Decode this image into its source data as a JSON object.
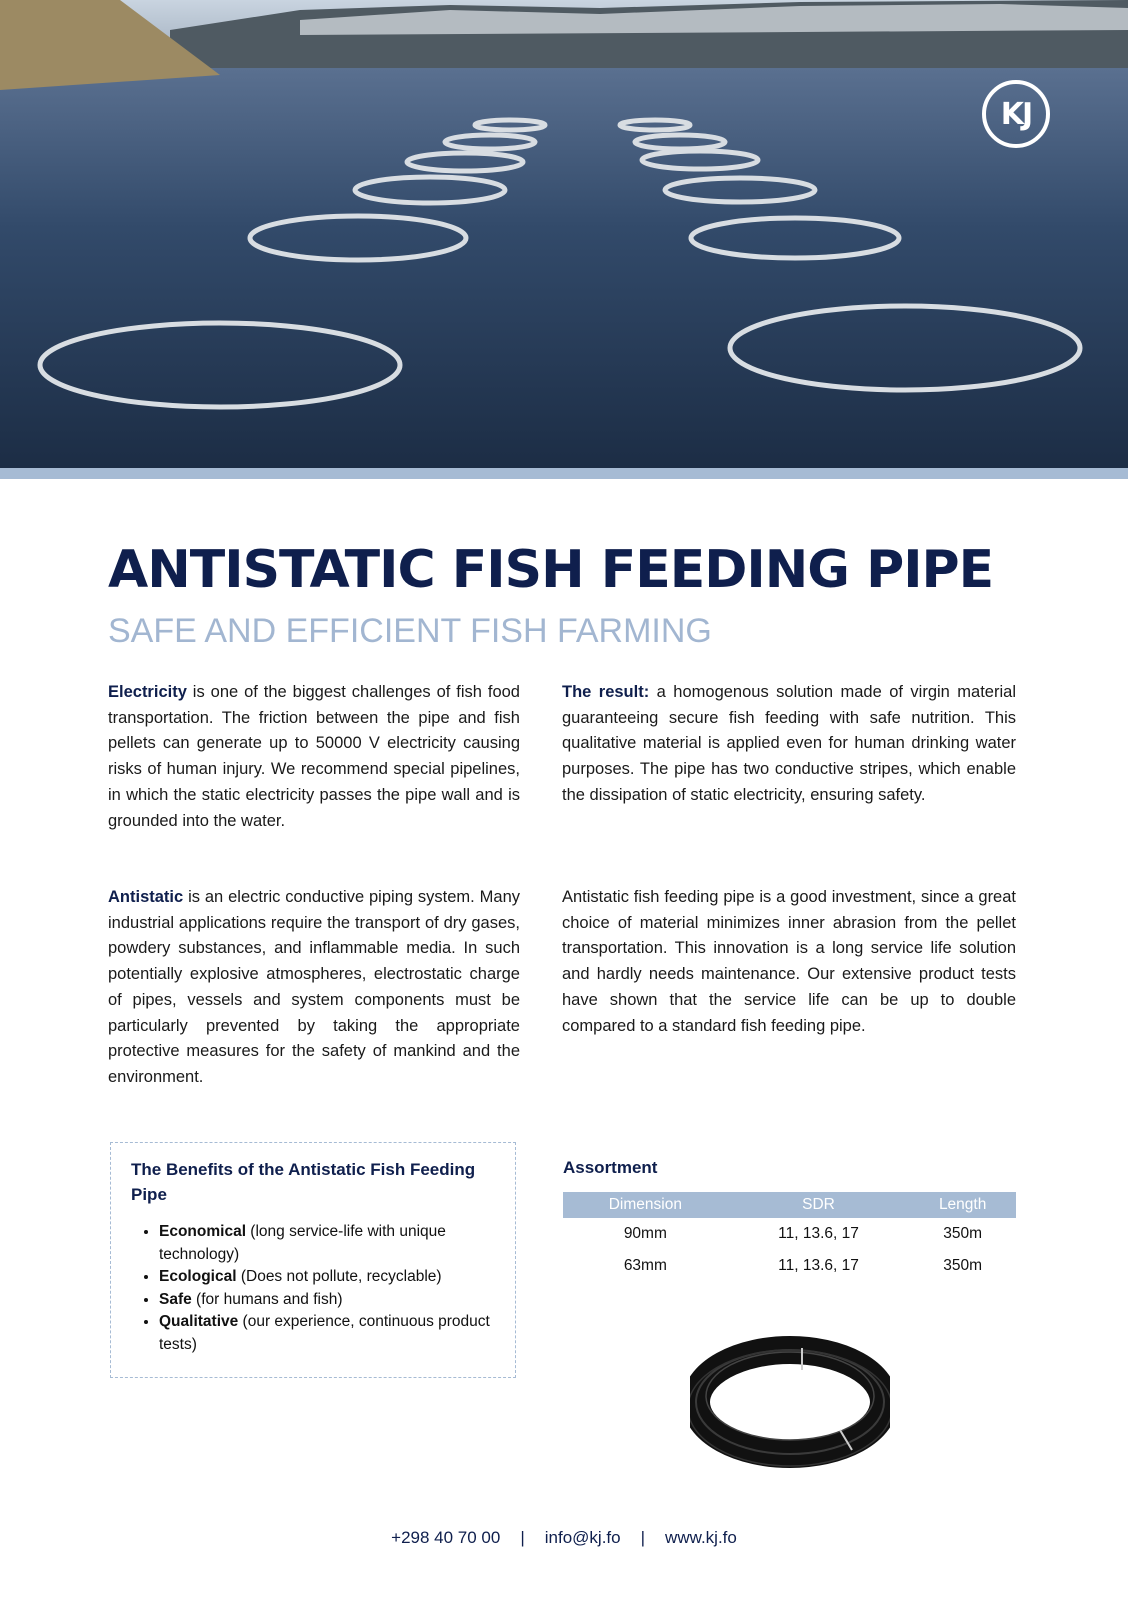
{
  "hero": {
    "logo_text": "KJ"
  },
  "title": "ANTISTATIC FISH FEEDING PIPE",
  "subtitle": "SAFE AND EFFICIENT FISH FARMING",
  "paragraphs": {
    "electricity": {
      "lead": "Electricity",
      "text": " is one of the biggest challenges of fish food transportation. The friction between the pipe and fish pellets can generate up to 50000 V electricity causing risks of human injury. We recommend special pipelines, in which the static electricity passes the pipe wall and is grounded into the water."
    },
    "antistatic": {
      "lead": "Antistatic",
      "text": " is an electric conductive piping system. Many industrial applications require the transport of dry gases, powdery substances, and inflammable media. In such potentially explosive atmospheres, electrostatic charge of pipes, vessels and system components must be particularly prevented by taking the appropriate protective measures for the safety of mankind and the environment."
    },
    "result": {
      "lead": "The result:",
      "text": " a homogenous solution made of virgin material guaranteeing secure fish feeding with safe nutrition. This qualitative material is applied even for human drinking water purposes. The pipe has two conductive stripes, which enable the dissipation of static electricity, ensuring safety."
    },
    "investment": {
      "text": "Antistatic fish feeding pipe is a good investment, since a great choice of material minimizes inner abrasion from the pellet transportation. This innovation is a long service life solution and hardly needs maintenance. Our extensive product tests have shown that the service life can be up to double compared to a standard fish feeding pipe."
    }
  },
  "benefits": {
    "title": "The Benefits of the Antistatic Fish Feeding Pipe",
    "items": [
      {
        "bold": "Economical",
        "text": " (long service-life with unique technology)"
      },
      {
        "bold": "Ecological",
        "text": " (Does not pollute, recyclable)"
      },
      {
        "bold": "Safe",
        "text": " (for humans and fish)"
      },
      {
        "bold": "Qualitative",
        "text": " (our experience, continuous product tests)"
      }
    ]
  },
  "assortment": {
    "title": "Assortment",
    "headers": [
      "Dimension",
      "SDR",
      "Length"
    ],
    "rows": [
      [
        "90mm",
        "11, 13.6, 17",
        "350m"
      ],
      [
        "63mm",
        "11, 13.6, 17",
        "350m"
      ]
    ]
  },
  "footer": {
    "phone": "+298 40 70 00",
    "separator": "|",
    "email": "info@kj.fo",
    "website": "www.kj.fo"
  },
  "colors": {
    "navy": "#0f1f4d",
    "light_blue": "#a6bbd4"
  }
}
